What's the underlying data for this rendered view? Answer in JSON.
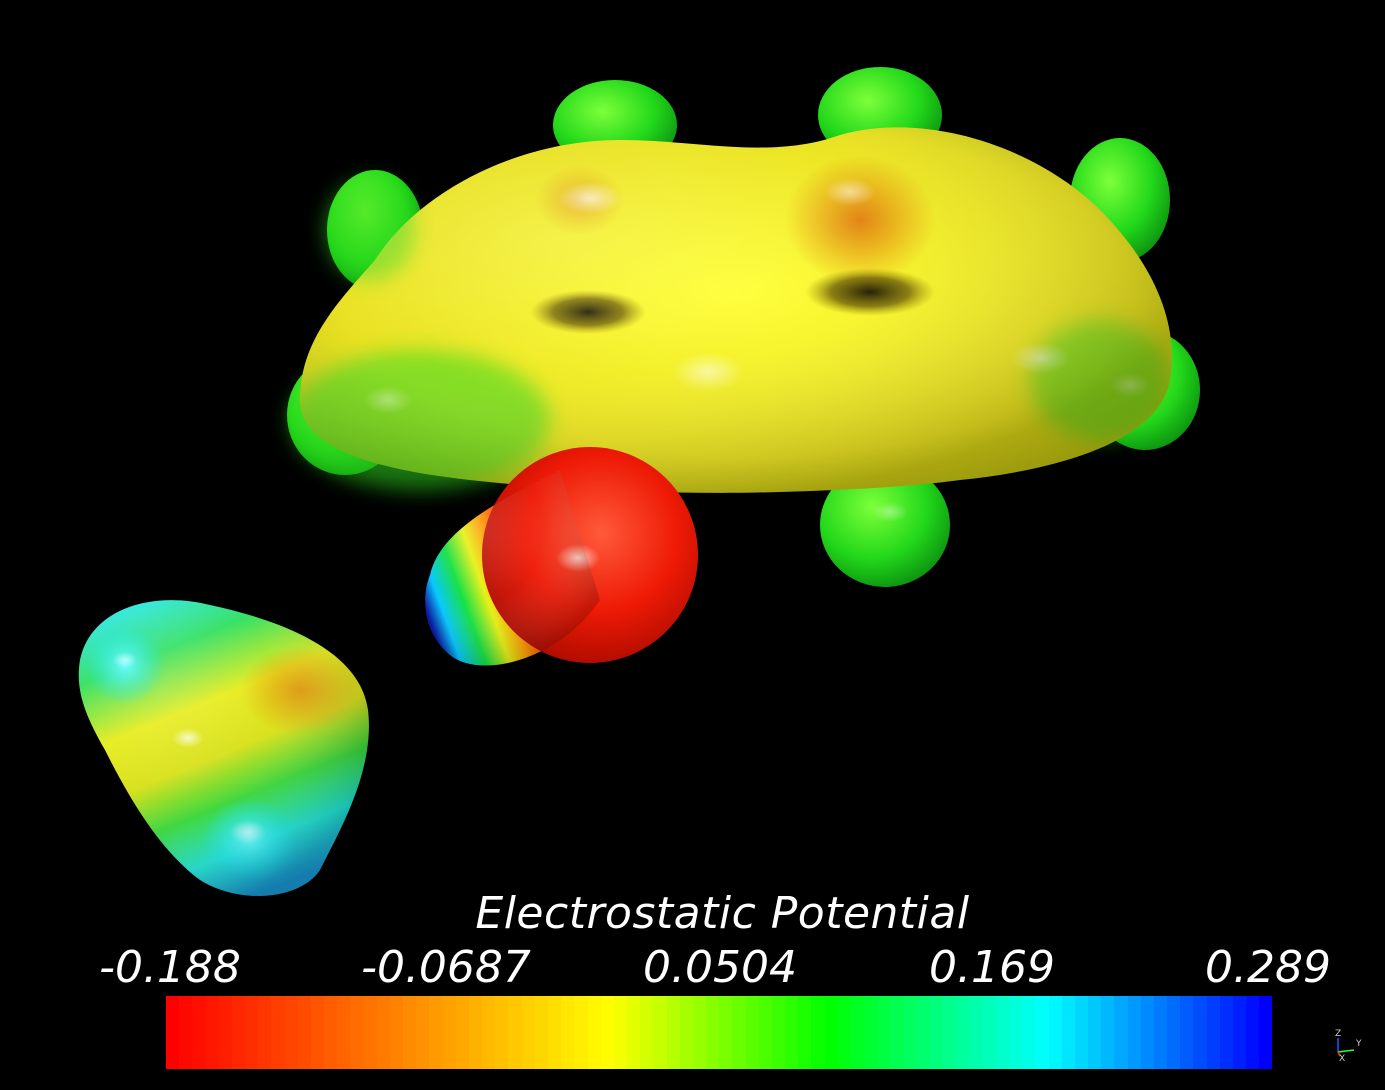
{
  "legend": {
    "title": "Electrostatic Potential",
    "ticks": [
      "-0.188",
      "-0.0687",
      "0.0504",
      "0.169",
      "0.289"
    ],
    "range": [
      -0.188,
      0.289
    ],
    "colormap": [
      "#ff0000",
      "#ff8000",
      "#ffff00",
      "#00ff00",
      "#00ffff",
      "#0000ff"
    ]
  },
  "axes_widget": {
    "labels": {
      "z": "Z",
      "y": "Y",
      "x": "X"
    },
    "colors": {
      "z": "#3050ff",
      "y": "#30ff30",
      "x": "#ff3030"
    }
  },
  "scene": {
    "background": "#000000",
    "objects": [
      "molecular-surface-naphthalene",
      "molecular-surface-oxygen-atom",
      "molecular-surface-small-molecule"
    ]
  }
}
